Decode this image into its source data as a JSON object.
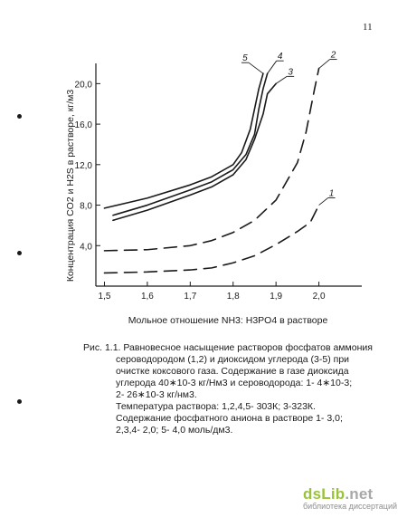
{
  "page_number": "11",
  "chart_data": {
    "type": "line",
    "xlabel": "Мольное отношение NH3: H3PO4 в растворе",
    "ylabel": "Концентрация CO2 и H2S в растворе, кг/м3",
    "xlim": [
      1.48,
      2.1
    ],
    "ylim": [
      0,
      22
    ],
    "x_ticks": [
      1.5,
      1.6,
      1.7,
      1.8,
      1.9,
      2.0
    ],
    "y_ticks": [
      4.0,
      8.0,
      12.0,
      16.0,
      20.0
    ],
    "grid": false,
    "series": [
      {
        "name": "1",
        "style": "dashed",
        "x": [
          1.5,
          1.6,
          1.7,
          1.75,
          1.8,
          1.85,
          1.9,
          1.95,
          1.98,
          2.0
        ],
        "y": [
          1.3,
          1.4,
          1.6,
          1.8,
          2.3,
          3.0,
          4.1,
          5.4,
          6.3,
          8.0
        ]
      },
      {
        "name": "2",
        "style": "dashed",
        "x": [
          1.5,
          1.6,
          1.7,
          1.75,
          1.8,
          1.85,
          1.9,
          1.95,
          1.97,
          1.99,
          2.0
        ],
        "y": [
          3.5,
          3.6,
          4.0,
          4.5,
          5.3,
          6.5,
          8.5,
          12.2,
          15.2,
          19.5,
          21.5
        ]
      },
      {
        "name": "3",
        "style": "solid",
        "x": [
          1.52,
          1.6,
          1.7,
          1.75,
          1.8,
          1.83,
          1.85,
          1.87,
          1.88,
          1.9
        ],
        "y": [
          6.5,
          7.5,
          9.0,
          9.8,
          11.0,
          12.5,
          14.5,
          17.0,
          19.0,
          20.0
        ]
      },
      {
        "name": "4",
        "style": "solid",
        "x": [
          1.52,
          1.6,
          1.7,
          1.75,
          1.8,
          1.83,
          1.85,
          1.86,
          1.87,
          1.88
        ],
        "y": [
          7.0,
          8.0,
          9.5,
          10.3,
          11.5,
          13.0,
          15.0,
          17.5,
          19.5,
          21.0
        ]
      },
      {
        "name": "5",
        "style": "solid",
        "x": [
          1.5,
          1.6,
          1.7,
          1.75,
          1.8,
          1.82,
          1.84,
          1.85,
          1.86,
          1.87
        ],
        "y": [
          7.7,
          8.7,
          10.0,
          10.8,
          12.0,
          13.2,
          15.5,
          17.5,
          19.5,
          21.0
        ]
      }
    ]
  },
  "caption": {
    "line1": "Рис. 1.1. Равновесное насыщение растворов фосфатов аммония",
    "line2": "сероводородом (1,2) и диоксидом углерода (3-5) при",
    "line3": "очистке коксового газа. Содержание в газе диоксида",
    "line4": "углерода 40∗10-3 кг/Нм3 и сероводорода: 1- 4∗10-3;",
    "line5": "2- 26∗10-3 кг/нм3.",
    "line6": "Температура раствора: 1,2,4,5- 303К; 3-323К.",
    "line7": "Содержание фосфатного аниона в растворе  1- 3,0;",
    "line8": "2,3,4- 2,0; 5- 4,0 моль/дм3."
  },
  "watermark": {
    "logo_main": "dsLib",
    "logo_tld": ".net",
    "subtitle": "библиотека диссертаций"
  }
}
